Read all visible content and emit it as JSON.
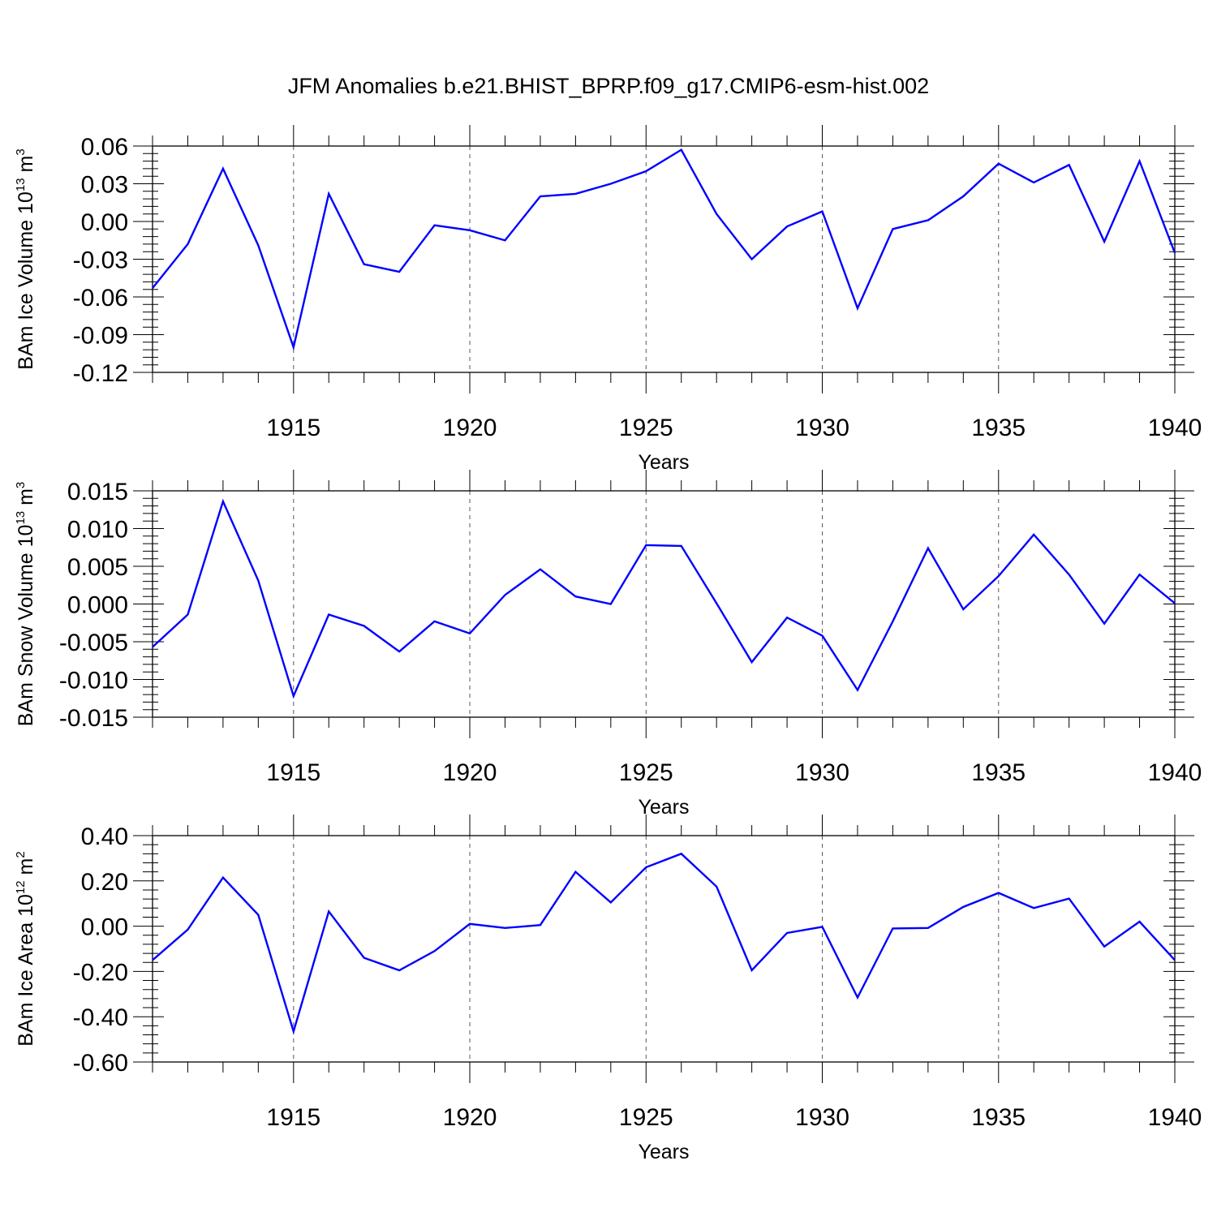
{
  "title": "JFM Anomalies b.e21.BHIST_BPRP.f09_g17.CMIP6-esm-hist.002",
  "colors": {
    "line": "#0000ff",
    "axis": "#000000",
    "grid": "#000000"
  },
  "chart_data": [
    {
      "type": "line",
      "ylabel": {
        "main": "BAm Ice Volume 10",
        "sup1": "13",
        "mid": " m",
        "sup2": "3"
      },
      "xlabel": "Years",
      "xlim": [
        1911,
        1940
      ],
      "ylim": [
        -0.12,
        0.06
      ],
      "yticks": [
        -0.12,
        -0.09,
        -0.06,
        -0.03,
        0.0,
        0.03,
        0.06
      ],
      "ytick_labels": [
        "-0.12",
        "-0.09",
        "-0.06",
        "-0.03",
        "0.00",
        "0.03",
        "0.06"
      ],
      "xticks": [
        1915,
        1920,
        1925,
        1930,
        1935,
        1940
      ],
      "xtick_labels": [
        "1915",
        "1920",
        "1925",
        "1930",
        "1935",
        "1940"
      ],
      "grid": "vertical dashed at major x ticks",
      "x": [
        1911,
        1912,
        1913,
        1914,
        1915,
        1916,
        1917,
        1918,
        1919,
        1920,
        1921,
        1922,
        1923,
        1924,
        1925,
        1926,
        1927,
        1928,
        1929,
        1930,
        1931,
        1932,
        1933,
        1934,
        1935,
        1936,
        1937,
        1938,
        1939,
        1940
      ],
      "series": [
        {
          "values": [
            -0.053,
            -0.018,
            0.042,
            -0.019,
            -0.1,
            0.022,
            -0.034,
            -0.04,
            -0.003,
            -0.007,
            -0.015,
            0.02,
            0.022,
            0.03,
            0.04,
            0.057,
            0.006,
            -0.03,
            -0.004,
            0.008,
            -0.069,
            -0.006,
            0.001,
            0.02,
            0.046,
            0.031,
            0.045,
            -0.016,
            0.048,
            -0.025
          ]
        }
      ]
    },
    {
      "type": "line",
      "ylabel": {
        "main": "BAm Snow Volume 10",
        "sup1": "13",
        "mid": " m",
        "sup2": "3"
      },
      "xlabel": "Years",
      "xlim": [
        1911,
        1940
      ],
      "ylim": [
        -0.015,
        0.015
      ],
      "yticks": [
        -0.015,
        -0.01,
        -0.005,
        0.0,
        0.005,
        0.01,
        0.015
      ],
      "ytick_labels": [
        "-0.015",
        "-0.010",
        "-0.005",
        "0.000",
        "0.005",
        "0.010",
        "0.015"
      ],
      "xticks": [
        1915,
        1920,
        1925,
        1930,
        1935,
        1940
      ],
      "xtick_labels": [
        "1915",
        "1920",
        "1925",
        "1930",
        "1935",
        "1940"
      ],
      "grid": "vertical dashed at major x ticks",
      "x": [
        1911,
        1912,
        1913,
        1914,
        1915,
        1916,
        1917,
        1918,
        1919,
        1920,
        1921,
        1922,
        1923,
        1924,
        1925,
        1926,
        1927,
        1928,
        1929,
        1930,
        1931,
        1932,
        1933,
        1934,
        1935,
        1936,
        1937,
        1938,
        1939,
        1940
      ],
      "series": [
        {
          "values": [
            -0.0057,
            -0.0014,
            0.0136,
            0.0031,
            -0.0122,
            -0.0014,
            -0.0029,
            -0.0063,
            -0.0023,
            -0.0039,
            0.0012,
            0.0046,
            0.001,
            0.0,
            0.0078,
            0.0077,
            0.0001,
            -0.0077,
            -0.0018,
            -0.0042,
            -0.0114,
            -0.0023,
            0.0074,
            -0.0007,
            0.0037,
            0.0092,
            0.0039,
            -0.0026,
            0.0039,
            0.0001
          ]
        }
      ]
    },
    {
      "type": "line",
      "ylabel": {
        "main": "BAm Ice Area 10",
        "sup1": "12",
        "mid": " m",
        "sup2": "2"
      },
      "xlabel": "Years",
      "xlim": [
        1911,
        1940
      ],
      "ylim": [
        -0.6,
        0.4
      ],
      "yticks": [
        -0.6,
        -0.4,
        -0.2,
        0.0,
        0.2,
        0.4
      ],
      "ytick_labels": [
        "-0.60",
        "-0.40",
        "-0.20",
        "0.00",
        "0.20",
        "0.40"
      ],
      "xticks": [
        1915,
        1920,
        1925,
        1930,
        1935,
        1940
      ],
      "xtick_labels": [
        "1915",
        "1920",
        "1925",
        "1930",
        "1935",
        "1940"
      ],
      "grid": "vertical dashed at major x ticks",
      "x": [
        1911,
        1912,
        1913,
        1914,
        1915,
        1916,
        1917,
        1918,
        1919,
        1920,
        1921,
        1922,
        1923,
        1924,
        1925,
        1926,
        1927,
        1928,
        1929,
        1930,
        1931,
        1932,
        1933,
        1934,
        1935,
        1936,
        1937,
        1938,
        1939,
        1940
      ],
      "series": [
        {
          "values": [
            -0.15,
            -0.015,
            0.215,
            0.05,
            -0.465,
            0.065,
            -0.14,
            -0.195,
            -0.11,
            0.01,
            -0.008,
            0.005,
            0.24,
            0.105,
            0.26,
            0.32,
            0.175,
            -0.195,
            -0.03,
            -0.003,
            -0.315,
            -0.01,
            -0.008,
            0.085,
            0.147,
            0.08,
            0.122,
            -0.09,
            0.02,
            -0.15
          ]
        }
      ]
    }
  ]
}
